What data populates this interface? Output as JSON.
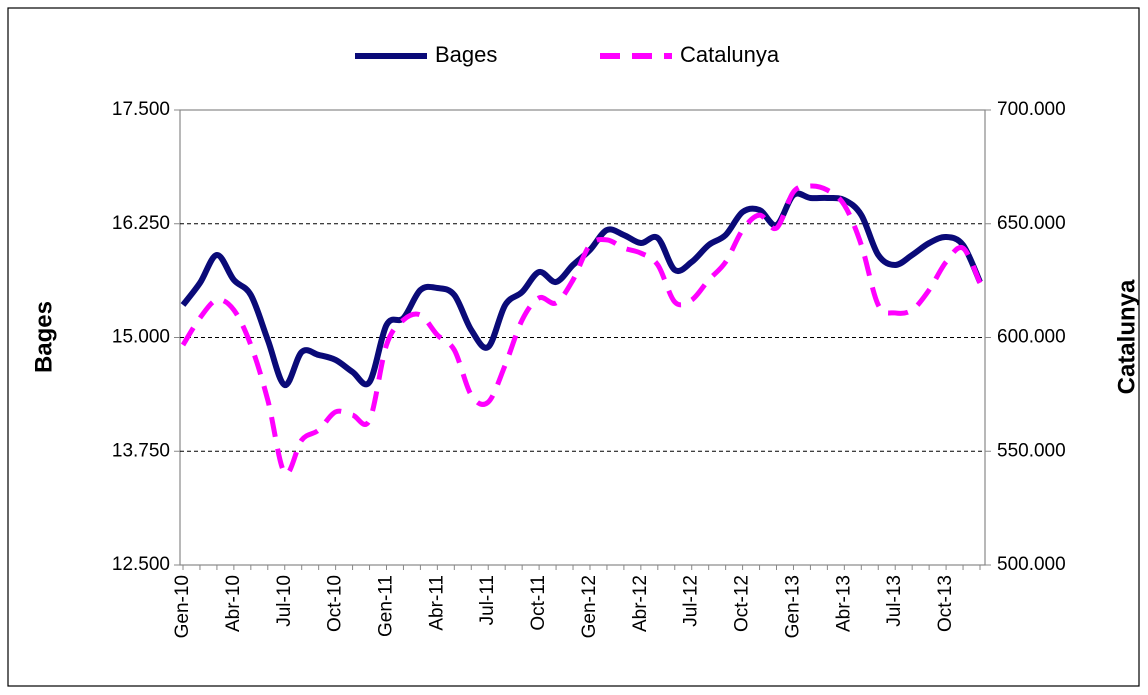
{
  "chart_data": {
    "type": "line",
    "categories": [
      "Gen-10",
      null,
      null,
      "Abr-10",
      null,
      null,
      "Jul-10",
      null,
      null,
      "Oct-10",
      null,
      null,
      "Gen-11",
      null,
      null,
      "Abr-11",
      null,
      null,
      "Jul-11",
      null,
      null,
      "Oct-11",
      null,
      null,
      "Gen-12",
      null,
      null,
      "Abr-12",
      null,
      null,
      "Jul-12",
      null,
      null,
      "Oct-12",
      null,
      null,
      "Gen-13",
      null,
      null,
      "Abr-13",
      null,
      null,
      "Jul-13",
      null,
      null,
      "Oct-13",
      null,
      null
    ],
    "series": [
      {
        "name": "Bages",
        "color": "#0a0a78",
        "dash": false,
        "axis": "y",
        "values": [
          15357,
          15599,
          15907,
          15632,
          15467,
          14973,
          14478,
          14841,
          14808,
          14753,
          14621,
          14511,
          15137,
          15214,
          15522,
          15544,
          15467,
          15082,
          14896,
          15357,
          15500,
          15720,
          15610,
          15797,
          15962,
          16181,
          16126,
          16038,
          16093,
          15742,
          15830,
          16016,
          16126,
          16379,
          16401,
          16236,
          16566,
          16533,
          16533,
          16511,
          16346,
          15907,
          15797,
          15907,
          16038,
          16104,
          16016,
          15610
        ]
      },
      {
        "name": "Catalunya",
        "color": "#ff00ff",
        "dash": true,
        "axis": "y2",
        "values": [
          596700,
          608600,
          616500,
          612100,
          596700,
          572500,
          540400,
          554900,
          559300,
          567300,
          565900,
          563700,
          596700,
          607700,
          609900,
          601100,
          594500,
          574700,
          571600,
          587900,
          607700,
          617400,
          615200,
          625300,
          640700,
          642900,
          639300,
          637100,
          631900,
          615600,
          616500,
          625300,
          633200,
          647300,
          653800,
          648100,
          664000,
          666600,
          664800,
          658200,
          640700,
          614300,
          610800,
          612100,
          620900,
          633200,
          639300,
          624000
        ]
      }
    ],
    "ylabel": "Bages",
    "y2label": "Catalunya",
    "ylim": [
      12500,
      17500
    ],
    "yticks": [
      {
        "value": 12500,
        "label": "12.500"
      },
      {
        "value": 13750,
        "label": "13.750"
      },
      {
        "value": 15000,
        "label": "15.000"
      },
      {
        "value": 16250,
        "label": "16.250"
      },
      {
        "value": 17500,
        "label": "17.500"
      }
    ],
    "y2lim": [
      500000,
      700000
    ],
    "y2ticks": [
      {
        "value": 500000,
        "label": "500.000"
      },
      {
        "value": 550000,
        "label": "550.000"
      },
      {
        "value": 600000,
        "label": "600.000"
      },
      {
        "value": 650000,
        "label": "650.000"
      },
      {
        "value": 700000,
        "label": "700.000"
      }
    ],
    "grid": true,
    "legend": "top"
  }
}
